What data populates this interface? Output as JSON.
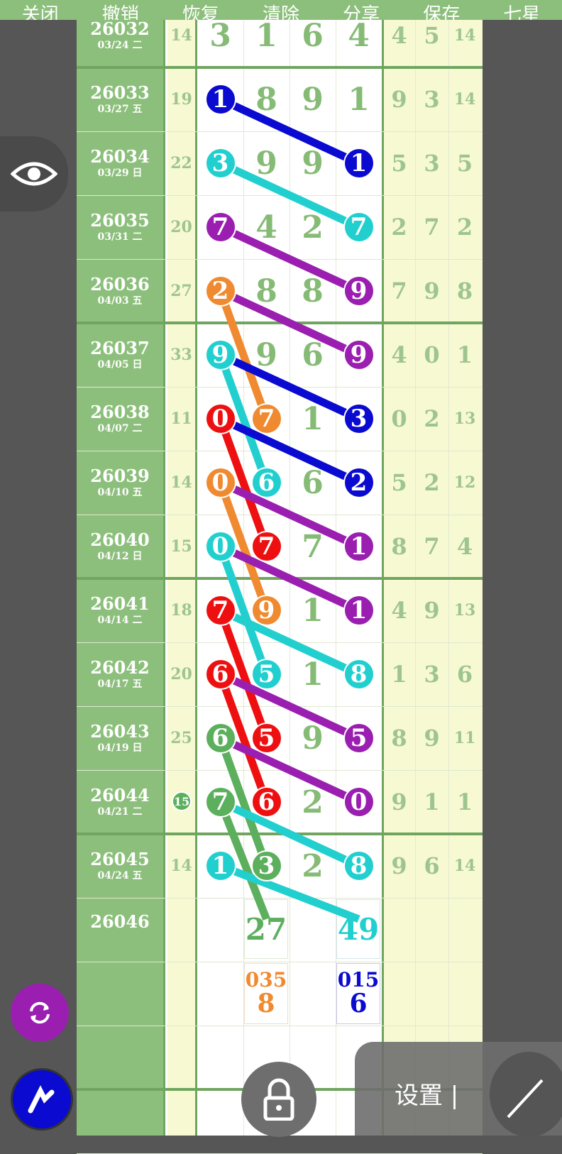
{
  "toolbar": {
    "items": [
      "关闭",
      "撤销",
      "恢复",
      "清除",
      "分享",
      "保存",
      "七星"
    ]
  },
  "colors": {
    "blue": "#0a0ad0",
    "cyan": "#22cfcf",
    "purple": "#9a1fb0",
    "orange": "#f08a30",
    "red": "#ee1010",
    "green": "#5caf5c"
  },
  "rows": [
    {
      "id": "26032",
      "date": "03/24 二",
      "sum": "14",
      "digits": [
        "3",
        "1",
        "6",
        "4"
      ],
      "right": [
        "4",
        "5",
        "14"
      ],
      "balls": []
    },
    {
      "id": "26033",
      "date": "03/27 五",
      "sum": "19",
      "digits": [
        "1",
        "8",
        "9",
        "1"
      ],
      "right": [
        "9",
        "3",
        "14"
      ],
      "balls": [
        [
          0,
          "blue"
        ]
      ]
    },
    {
      "id": "26034",
      "date": "03/29 日",
      "sum": "22",
      "digits": [
        "3",
        "9",
        "9",
        "1"
      ],
      "right": [
        "5",
        "3",
        "5"
      ],
      "balls": [
        [
          0,
          "cyan"
        ],
        [
          3,
          "blue"
        ]
      ]
    },
    {
      "id": "26035",
      "date": "03/31 二",
      "sum": "20",
      "digits": [
        "7",
        "4",
        "2",
        "7"
      ],
      "right": [
        "2",
        "7",
        "2"
      ],
      "balls": [
        [
          0,
          "purple"
        ],
        [
          3,
          "cyan"
        ]
      ]
    },
    {
      "id": "26036",
      "date": "04/03 五",
      "sum": "27",
      "digits": [
        "2",
        "8",
        "8",
        "9"
      ],
      "right": [
        "7",
        "9",
        "8"
      ],
      "balls": [
        [
          0,
          "orange"
        ],
        [
          3,
          "purple"
        ]
      ]
    },
    {
      "id": "26037",
      "date": "04/05 日",
      "sum": "33",
      "digits": [
        "9",
        "9",
        "6",
        "9"
      ],
      "right": [
        "4",
        "0",
        "1"
      ],
      "balls": [
        [
          0,
          "cyan"
        ],
        [
          3,
          "purple"
        ]
      ]
    },
    {
      "id": "26038",
      "date": "04/07 二",
      "sum": "11",
      "digits": [
        "0",
        "7",
        "1",
        "3"
      ],
      "right": [
        "0",
        "2",
        "13"
      ],
      "balls": [
        [
          0,
          "red"
        ],
        [
          1,
          "orange"
        ],
        [
          3,
          "blue"
        ]
      ]
    },
    {
      "id": "26039",
      "date": "04/10 五",
      "sum": "14",
      "digits": [
        "0",
        "6",
        "6",
        "2"
      ],
      "right": [
        "5",
        "2",
        "12"
      ],
      "balls": [
        [
          0,
          "orange"
        ],
        [
          1,
          "cyan"
        ],
        [
          3,
          "blue"
        ]
      ]
    },
    {
      "id": "26040",
      "date": "04/12 日",
      "sum": "15",
      "digits": [
        "0",
        "7",
        "7",
        "1"
      ],
      "right": [
        "8",
        "7",
        "4"
      ],
      "balls": [
        [
          0,
          "cyan"
        ],
        [
          1,
          "red"
        ],
        [
          3,
          "purple"
        ]
      ]
    },
    {
      "id": "26041",
      "date": "04/14 二",
      "sum": "18",
      "digits": [
        "7",
        "9",
        "1",
        "1"
      ],
      "right": [
        "4",
        "9",
        "13"
      ],
      "balls": [
        [
          0,
          "red"
        ],
        [
          1,
          "orange"
        ],
        [
          3,
          "purple"
        ]
      ]
    },
    {
      "id": "26042",
      "date": "04/17 五",
      "sum": "20",
      "digits": [
        "6",
        "5",
        "1",
        "8"
      ],
      "right": [
        "1",
        "3",
        "6"
      ],
      "balls": [
        [
          0,
          "red"
        ],
        [
          1,
          "cyan"
        ],
        [
          3,
          "cyan"
        ]
      ]
    },
    {
      "id": "26043",
      "date": "04/19 日",
      "sum": "25",
      "digits": [
        "6",
        "5",
        "9",
        "5"
      ],
      "right": [
        "8",
        "9",
        "11"
      ],
      "balls": [
        [
          0,
          "green"
        ],
        [
          1,
          "red"
        ],
        [
          3,
          "purple"
        ]
      ]
    },
    {
      "id": "26044",
      "date": "04/21 二",
      "sum": "15",
      "sum_circled": true,
      "digits": [
        "7",
        "6",
        "2",
        "0"
      ],
      "right": [
        "9",
        "1",
        "1"
      ],
      "balls": [
        [
          0,
          "green"
        ],
        [
          1,
          "red"
        ],
        [
          3,
          "purple"
        ]
      ]
    },
    {
      "id": "26045",
      "date": "04/24 五",
      "sum": "14",
      "digits": [
        "1",
        "3",
        "2",
        "8"
      ],
      "right": [
        "9",
        "6",
        "14"
      ],
      "balls": [
        [
          0,
          "cyan"
        ],
        [
          1,
          "green"
        ],
        [
          3,
          "cyan"
        ]
      ]
    }
  ],
  "next": {
    "id": "26046",
    "p2": "27",
    "p4": "49"
  },
  "prediction": {
    "p2_top": "035",
    "p2_bottom": "8",
    "p4_top": "015",
    "p4_bottom": "6"
  },
  "links": [
    [
      1,
      0,
      2,
      3,
      "blue"
    ],
    [
      2,
      0,
      3,
      3,
      "cyan"
    ],
    [
      3,
      0,
      4,
      3,
      "purple"
    ],
    [
      4,
      0,
      5,
      3,
      "purple"
    ],
    [
      4,
      0,
      6,
      1,
      "orange"
    ],
    [
      5,
      0,
      6,
      3,
      "blue"
    ],
    [
      5,
      0,
      7,
      1,
      "cyan"
    ],
    [
      6,
      0,
      7,
      3,
      "blue"
    ],
    [
      6,
      0,
      8,
      1,
      "red"
    ],
    [
      7,
      0,
      8,
      3,
      "purple"
    ],
    [
      7,
      0,
      9,
      1,
      "orange"
    ],
    [
      8,
      0,
      9,
      3,
      "purple"
    ],
    [
      8,
      0,
      10,
      1,
      "cyan"
    ],
    [
      9,
      0,
      10,
      3,
      "cyan"
    ],
    [
      9,
      0,
      11,
      1,
      "red"
    ],
    [
      10,
      0,
      11,
      3,
      "purple"
    ],
    [
      10,
      0,
      12,
      1,
      "red"
    ],
    [
      11,
      0,
      12,
      3,
      "purple"
    ],
    [
      11,
      0,
      13,
      1,
      "green"
    ],
    [
      12,
      0,
      13,
      3,
      "cyan"
    ],
    [
      12,
      0,
      14,
      1,
      "green"
    ],
    [
      13,
      0,
      14,
      3,
      "cyan"
    ]
  ],
  "settings": {
    "label": "设置 |"
  }
}
